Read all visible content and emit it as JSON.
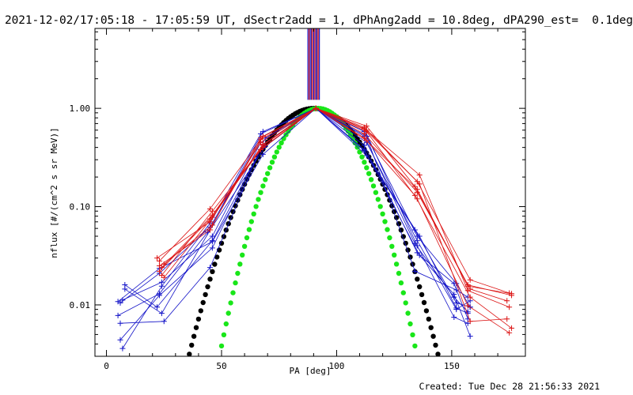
{
  "title": "2021-12-02/17:05:18 - 17:05:59 UT, dSectr2add = 1, dPhAng2add = 10.8deg, dPA290_est=  0.1deg",
  "footer": "Created: Tue Dec 28 21:56:33 2021",
  "chart_data": {
    "type": "line",
    "xlabel": "PA [deg]",
    "ylabel": "nflux [#/(cm^2 s sr MeV)]",
    "xlim": [
      -5,
      182
    ],
    "ylim": [
      0.003,
      6.5
    ],
    "y_scale": "log",
    "x_ticks": [
      0,
      50,
      100,
      150
    ],
    "x_tick_labels": [
      "0",
      "50",
      "100",
      "150"
    ],
    "y_ticks": [
      0.01,
      0.1,
      1.0
    ],
    "y_tick_labels": [
      "0.01",
      "0.10",
      "1.00"
    ],
    "grid": false,
    "colors": {
      "blue": "#1414c8",
      "red": "#dc1414",
      "black": "#000000",
      "green": "#19e619",
      "purple": "#5a1478"
    },
    "vertical_markers": {
      "x": [
        87.5,
        88.0,
        88.5,
        89.0,
        89.5,
        90.0,
        90.5,
        91.0,
        91.5,
        92.0,
        92.5
      ],
      "colors": [
        "#1414c8",
        "#dc1414",
        "#1414c8",
        "#5a1478",
        "#dc1414",
        "#1414c8",
        "#dc1414",
        "#1414c8",
        "#5a1478",
        "#dc1414",
        "#1414c8"
      ],
      "from_y": 1.22,
      "to_y": 6.5
    },
    "fit_curves": [
      {
        "color": "#000000",
        "x_min": 22,
        "x_max": 156,
        "center": 90,
        "sigma": 22.5
      },
      {
        "color": "#19e619",
        "x_min": 31,
        "x_max": 157.5,
        "center": 92,
        "sigma": 17.8
      }
    ],
    "series_blue": [
      [
        [
          6,
          0.0105
        ],
        [
          23,
          0.021
        ],
        [
          45,
          0.062
        ],
        [
          68,
          0.52
        ],
        [
          91,
          1.0
        ],
        [
          112,
          0.58
        ],
        [
          135,
          0.05
        ],
        [
          152,
          0.0165
        ],
        [
          158,
          0.0095
        ]
      ],
      [
        [
          7,
          0.0112
        ],
        [
          24,
          0.017
        ],
        [
          46,
          0.05
        ],
        [
          67,
          0.45
        ],
        [
          91,
          1.0
        ],
        [
          112,
          0.52
        ],
        [
          134,
          0.042
        ],
        [
          151,
          0.012
        ],
        [
          157,
          0.0085
        ]
      ],
      [
        [
          5,
          0.0078
        ],
        [
          23,
          0.013
        ],
        [
          44,
          0.055
        ],
        [
          68,
          0.58
        ],
        [
          91,
          1.0
        ],
        [
          113,
          0.45
        ],
        [
          135,
          0.045
        ],
        [
          152,
          0.009
        ],
        [
          158,
          0.011
        ]
      ],
      [
        [
          8,
          0.016
        ],
        [
          22,
          0.0095
        ],
        [
          46,
          0.045
        ],
        [
          67,
          0.38
        ],
        [
          91,
          1.0
        ],
        [
          112,
          0.38
        ],
        [
          136,
          0.032
        ],
        [
          151,
          0.0165
        ],
        [
          157,
          0.0072
        ]
      ],
      [
        [
          6,
          0.0065
        ],
        [
          25,
          0.0068
        ],
        [
          45,
          0.024
        ],
        [
          69,
          0.5
        ],
        [
          91,
          1.0
        ],
        [
          113,
          0.33
        ],
        [
          134,
          0.058
        ],
        [
          152,
          0.0105
        ],
        [
          158,
          0.0095
        ]
      ],
      [
        [
          6,
          0.0044
        ],
        [
          23,
          0.0125
        ],
        [
          46,
          0.038
        ],
        [
          68,
          0.43
        ],
        [
          91,
          1.0
        ],
        [
          112,
          0.62
        ],
        [
          135,
          0.04
        ],
        [
          151,
          0.0075
        ],
        [
          157,
          0.0065
        ]
      ],
      [
        [
          7,
          0.0036
        ],
        [
          24,
          0.0155
        ],
        [
          45,
          0.068
        ],
        [
          67,
          0.55
        ],
        [
          91,
          1.0
        ],
        [
          113,
          0.52
        ],
        [
          134,
          0.022
        ],
        [
          152,
          0.0142
        ],
        [
          157,
          0.012
        ]
      ],
      [
        [
          5,
          0.0108
        ],
        [
          23,
          0.0235
        ],
        [
          46,
          0.044
        ],
        [
          68,
          0.34
        ],
        [
          91,
          1.0
        ],
        [
          112,
          0.42
        ],
        [
          135,
          0.034
        ],
        [
          151,
          0.0128
        ],
        [
          158,
          0.0048
        ]
      ],
      [
        [
          8,
          0.0145
        ],
        [
          24,
          0.0082
        ],
        [
          45,
          0.058
        ],
        [
          69,
          0.41
        ],
        [
          91,
          1.0
        ],
        [
          112,
          0.37
        ],
        [
          136,
          0.05
        ],
        [
          152,
          0.0093
        ],
        [
          157,
          0.0082
        ]
      ]
    ],
    "series_red": [
      [
        [
          23,
          0.028
        ],
        [
          45,
          0.095
        ],
        [
          67,
          0.48
        ],
        [
          91,
          1.0
        ],
        [
          112,
          0.62
        ],
        [
          135,
          0.18
        ],
        [
          158,
          0.018
        ],
        [
          175,
          0.0132
        ]
      ],
      [
        [
          24,
          0.024
        ],
        [
          46,
          0.082
        ],
        [
          68,
          0.43
        ],
        [
          91,
          1.0
        ],
        [
          113,
          0.66
        ],
        [
          134,
          0.16
        ],
        [
          157,
          0.016
        ],
        [
          176,
          0.0125
        ]
      ],
      [
        [
          23,
          0.022
        ],
        [
          45,
          0.075
        ],
        [
          67,
          0.38
        ],
        [
          91,
          1.0
        ],
        [
          112,
          0.55
        ],
        [
          135,
          0.14
        ],
        [
          158,
          0.0145
        ],
        [
          174,
          0.011
        ]
      ],
      [
        [
          25,
          0.026
        ],
        [
          46,
          0.065
        ],
        [
          68,
          0.52
        ],
        [
          91,
          1.0
        ],
        [
          113,
          0.6
        ],
        [
          136,
          0.21
        ],
        [
          157,
          0.014
        ],
        [
          175,
          0.0095
        ]
      ],
      [
        [
          22,
          0.03
        ],
        [
          45,
          0.07
        ],
        [
          67,
          0.45
        ],
        [
          91,
          1.0
        ],
        [
          112,
          0.5
        ],
        [
          134,
          0.13
        ],
        [
          158,
          0.012
        ],
        [
          176,
          0.0058
        ]
      ],
      [
        [
          24,
          0.02
        ],
        [
          46,
          0.09
        ],
        [
          68,
          0.4
        ],
        [
          91,
          1.0
        ],
        [
          113,
          0.58
        ],
        [
          135,
          0.12
        ],
        [
          157,
          0.0098
        ],
        [
          175,
          0.0052
        ]
      ],
      [
        [
          23,
          0.025
        ],
        [
          45,
          0.058
        ],
        [
          67,
          0.5
        ],
        [
          91,
          1.0
        ],
        [
          112,
          0.64
        ],
        [
          136,
          0.17
        ],
        [
          158,
          0.0068
        ],
        [
          174,
          0.0072
        ]
      ],
      [
        [
          25,
          0.019
        ],
        [
          46,
          0.078
        ],
        [
          68,
          0.42
        ],
        [
          91,
          1.0
        ],
        [
          113,
          0.47
        ],
        [
          135,
          0.15
        ],
        [
          157,
          0.0155
        ],
        [
          176,
          0.013
        ]
      ]
    ]
  }
}
